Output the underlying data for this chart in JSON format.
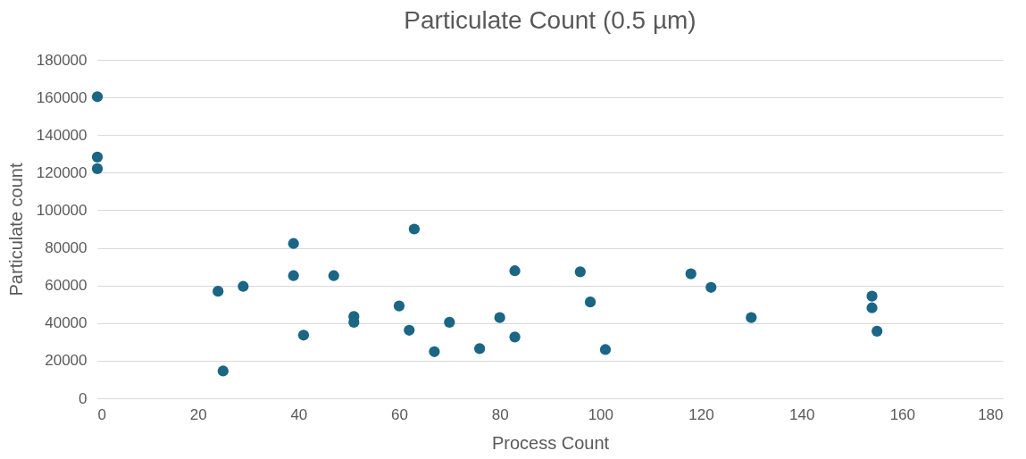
{
  "chart_data": {
    "type": "scatter",
    "title": "Particulate Count (0.5 µm)",
    "xlabel": "Process Count",
    "ylabel": "Particulate count",
    "x": [
      0,
      0,
      0,
      24,
      25,
      29,
      39,
      39,
      41,
      47,
      51,
      51,
      60,
      63,
      62,
      67,
      70,
      76,
      80,
      83,
      83,
      96,
      98,
      101,
      118,
      122,
      130,
      154,
      154,
      155
    ],
    "series": [
      {
        "color": "#1b6585",
        "values": [
          160400,
          128300,
          122100,
          56900,
          14500,
          59500,
          82300,
          65200,
          33600,
          65200,
          43500,
          40400,
          49100,
          90000,
          36200,
          24800,
          40400,
          26400,
          42900,
          67800,
          32600,
          67300,
          51200,
          25900,
          66200,
          59000,
          42900,
          54300,
          48100,
          35700
        ]
      }
    ],
    "xlim": [
      0,
      180
    ],
    "xticks": [
      0,
      20,
      40,
      60,
      80,
      100,
      120,
      140,
      160,
      180
    ],
    "ylim": [
      0,
      180000
    ],
    "yticks": [
      0,
      20000,
      40000,
      60000,
      80000,
      100000,
      120000,
      140000,
      160000,
      180000
    ],
    "grid": "y",
    "marker": "circle"
  }
}
